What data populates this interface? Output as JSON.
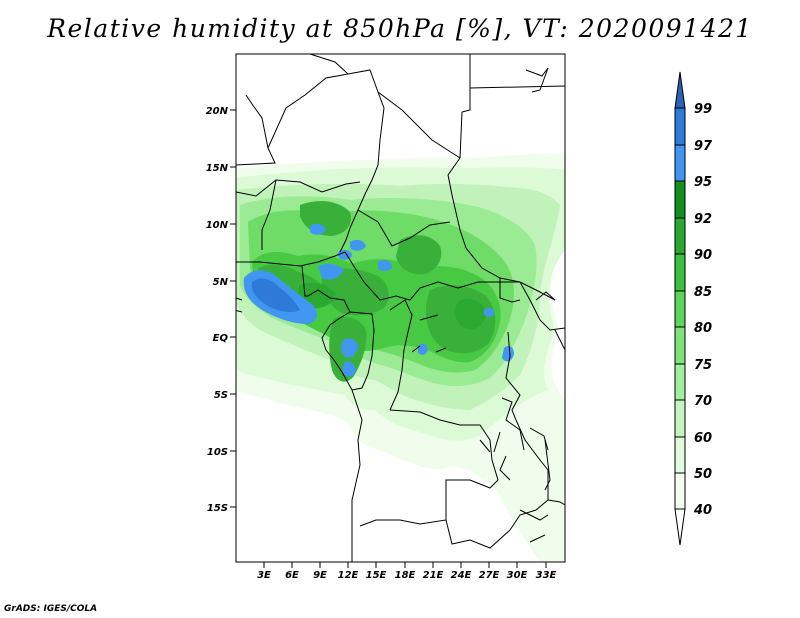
{
  "title": "Relative humidity at 850hPa [%], VT: 2020091421",
  "credit": "GrADS: IGES/COLA",
  "map": {
    "lat_labels": [
      "20N",
      "15N",
      "10N",
      "5N",
      "EQ",
      "5S",
      "10S",
      "15S"
    ],
    "lon_labels": [
      "3E",
      "6E",
      "9E",
      "12E",
      "15E",
      "18E",
      "21E",
      "24E",
      "27E",
      "30E",
      "33E"
    ]
  },
  "colorbar": {
    "labels": [
      "99",
      "97",
      "95",
      "92",
      "90",
      "85",
      "80",
      "75",
      "70",
      "60",
      "50",
      "40"
    ],
    "colors": [
      "#2a62b8",
      "#2e7ad8",
      "#4096f0",
      "#10901e",
      "#2aa830",
      "#3cc23e",
      "#5ad65a",
      "#7ee47a",
      "#a0eea0",
      "#c4f4c0",
      "#e2fbde",
      "#f4fff2"
    ]
  }
}
